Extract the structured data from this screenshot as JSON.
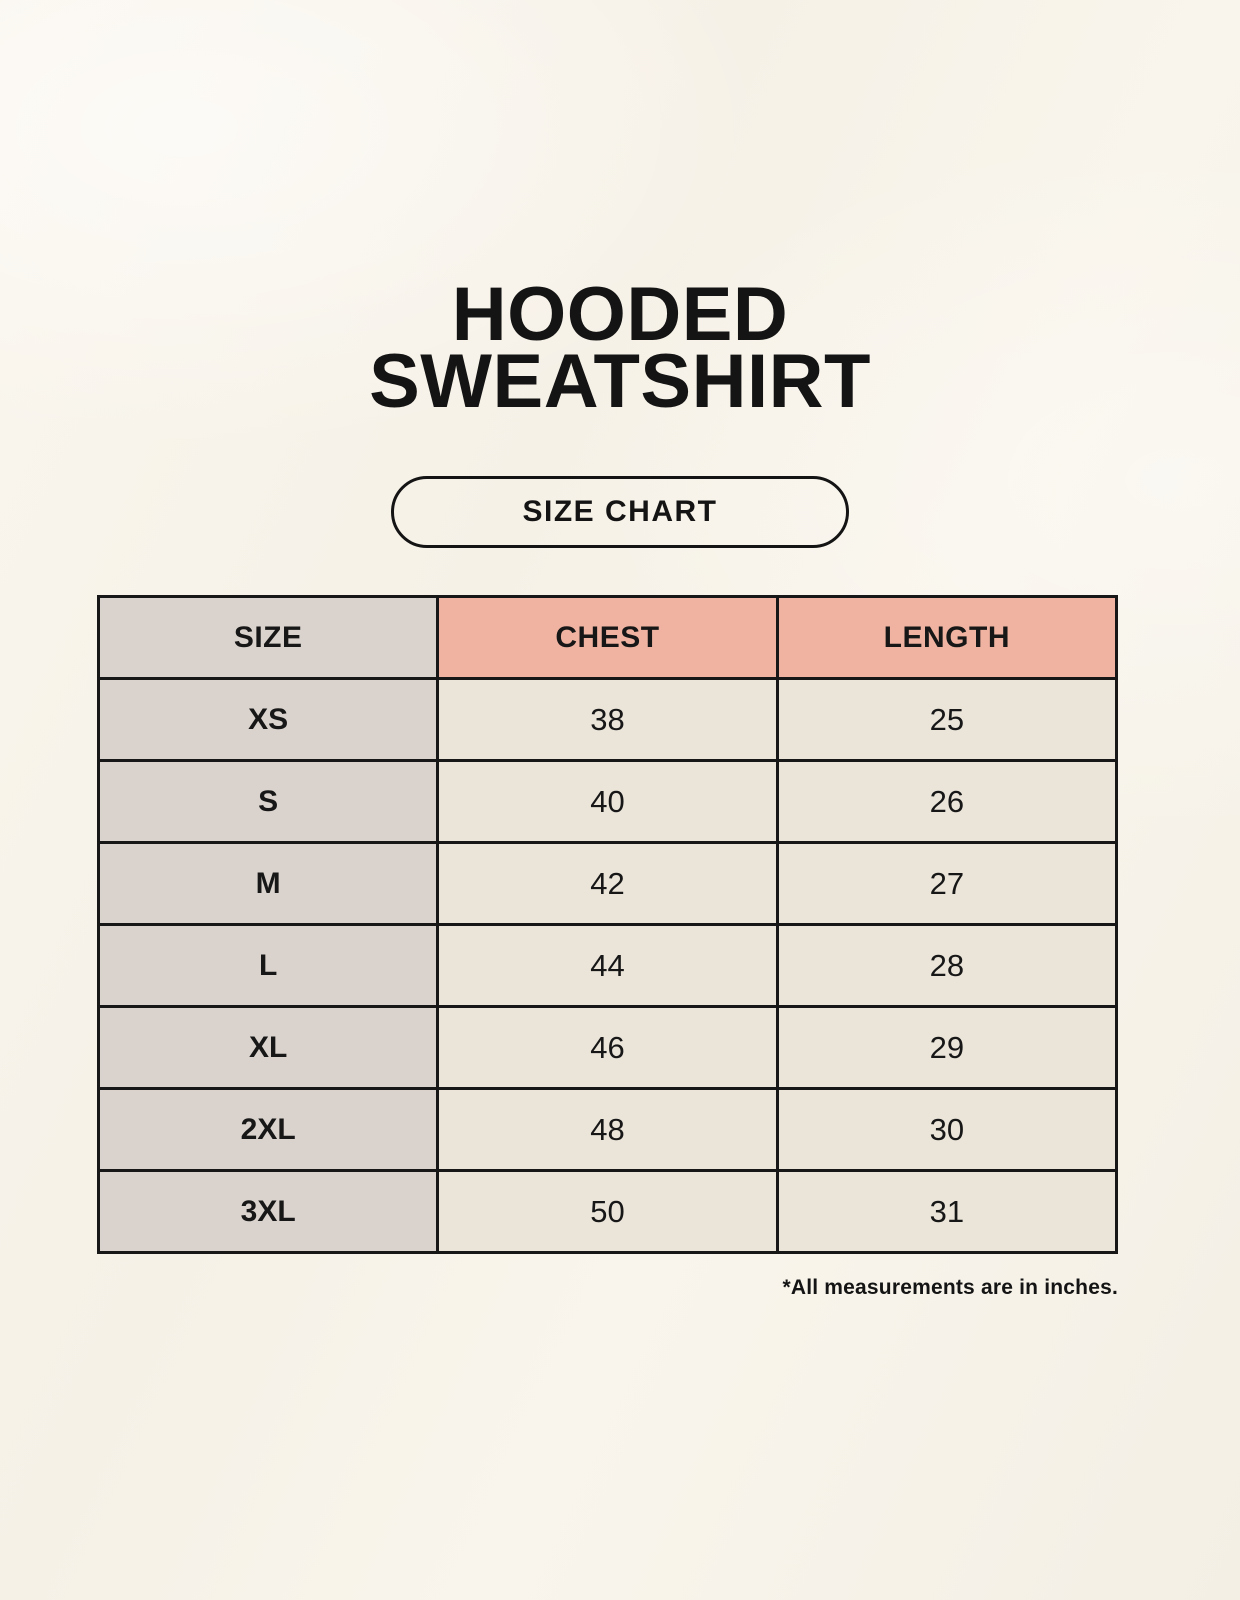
{
  "header": {
    "title_line1": "HOODED",
    "title_line2": "SWEATSHIRT",
    "badge_label": "SIZE CHART"
  },
  "table": {
    "columns": [
      "SIZE",
      "CHEST",
      "LENGTH"
    ],
    "rows": [
      {
        "size": "XS",
        "chest": "38",
        "length": "25"
      },
      {
        "size": "S",
        "chest": "40",
        "length": "26"
      },
      {
        "size": "M",
        "chest": "42",
        "length": "27"
      },
      {
        "size": "L",
        "chest": "44",
        "length": "28"
      },
      {
        "size": "XL",
        "chest": "46",
        "length": "29"
      },
      {
        "size": "2XL",
        "chest": "48",
        "length": "30"
      },
      {
        "size": "3XL",
        "chest": "50",
        "length": "31"
      }
    ]
  },
  "footnote": "*All measurements are in inches.",
  "colors": {
    "page_background": "#f7f2e9",
    "accent_salmon": "#f0b3a1",
    "size_column_taupe": "#dad3cd",
    "value_cell_cream": "#eae4d9",
    "border": "#171717",
    "text": "#141414"
  }
}
